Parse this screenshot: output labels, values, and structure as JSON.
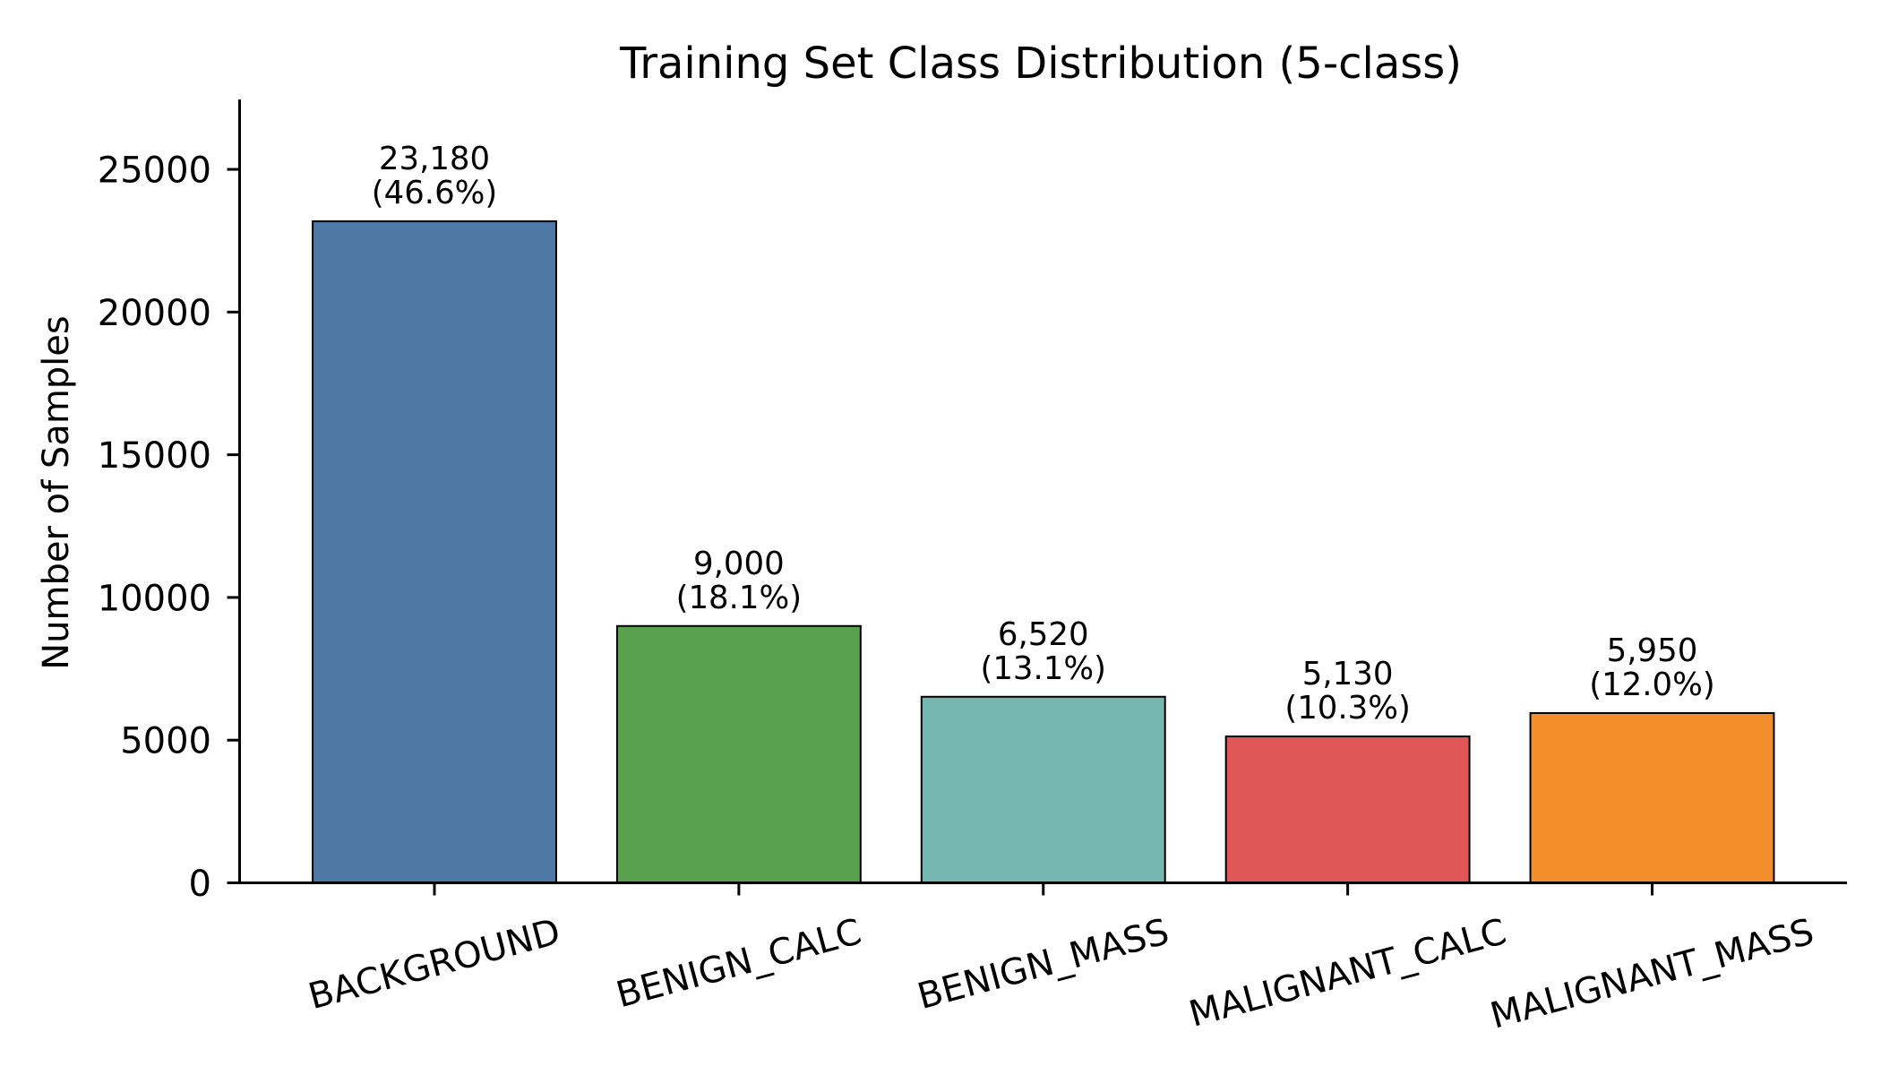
{
  "chart_data": {
    "type": "bar",
    "title": "Training Set Class Distribution (5-class)",
    "xlabel": "",
    "ylabel": "Number of Samples",
    "categories": [
      "BACKGROUND",
      "BENIGN_CALC",
      "BENIGN_MASS",
      "MALIGNANT_CALC",
      "MALIGNANT_MASS"
    ],
    "values": [
      23180,
      9000,
      6520,
      5130,
      5950
    ],
    "value_labels": [
      "23,180",
      "9,000",
      "6,520",
      "5,130",
      "5,950"
    ],
    "percent_labels": [
      "(46.6%)",
      "(18.1%)",
      "(13.1%)",
      "(10.3%)",
      "(12.0%)"
    ],
    "colors": [
      "#4E79A7",
      "#59A14F",
      "#76B7B2",
      "#E15759",
      "#F28E2B"
    ],
    "edge_color": "#000000",
    "yticks": [
      0,
      5000,
      10000,
      15000,
      20000,
      25000
    ],
    "ytick_labels": [
      "0",
      "5000",
      "10000",
      "15000",
      "20000",
      "25000"
    ],
    "ylim": [
      0,
      27450
    ],
    "xtick_rotation_deg": 15,
    "grid": false,
    "legend": null,
    "spines": {
      "top": false,
      "right": false,
      "left": true,
      "bottom": true
    }
  }
}
